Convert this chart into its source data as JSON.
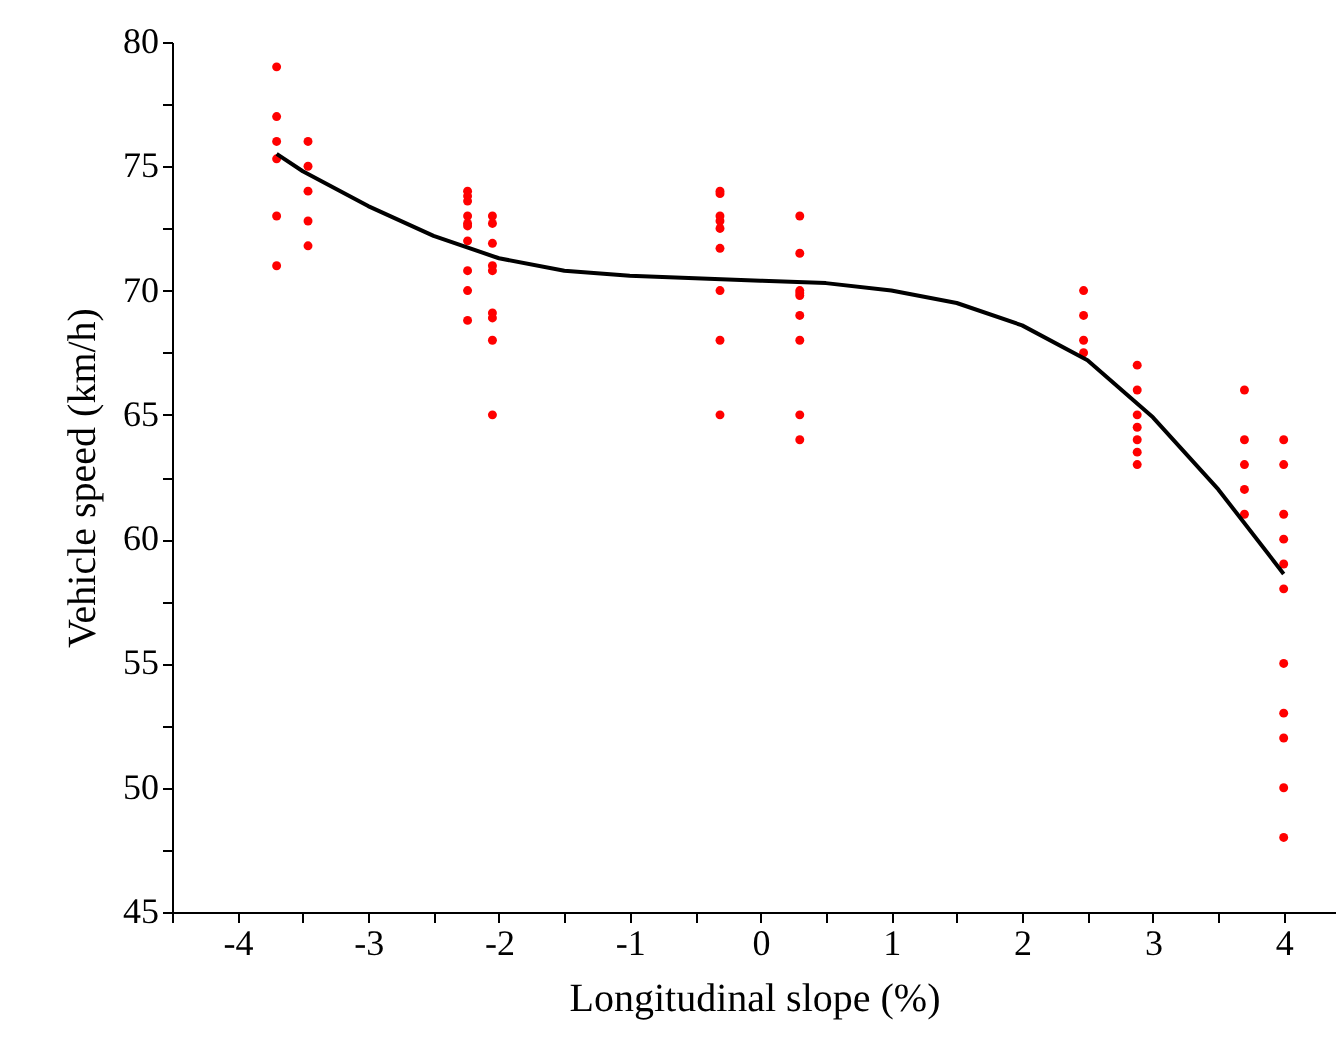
{
  "chart_data": {
    "type": "scatter",
    "xlabel": "Longitudinal slope  (%)",
    "ylabel": "Vehicle speed (km/h)",
    "xlim": [
      -4.5,
      4.4
    ],
    "ylim": [
      45,
      80
    ],
    "xticks": [
      {
        "value": -4.5,
        "label": null
      },
      -4,
      {
        "value": -3.5,
        "label": null
      },
      -3,
      {
        "value": -2.5,
        "label": null
      },
      -2,
      {
        "value": -1.5,
        "label": null
      },
      -1,
      {
        "value": -0.5,
        "label": null
      },
      0,
      {
        "value": 0.5,
        "label": null
      },
      1,
      {
        "value": 1.5,
        "label": null
      },
      2,
      {
        "value": 2.5,
        "label": null
      },
      3,
      {
        "value": 3.5,
        "label": null
      },
      4
    ],
    "yticks": [
      45,
      {
        "value": 47.5,
        "label": null
      },
      50,
      {
        "value": 52.5,
        "label": null
      },
      55,
      {
        "value": 57.5,
        "label": null
      },
      60,
      {
        "value": 62.5,
        "label": null
      },
      65,
      {
        "value": 67.5,
        "label": null
      },
      70,
      {
        "value": 72.5,
        "label": null
      },
      75,
      {
        "value": 77.5,
        "label": null
      },
      80
    ],
    "grid": false,
    "legend": false,
    "marker": "circle",
    "series": [
      {
        "type": "scatter",
        "color": "#ff0000",
        "x": [
          -3.7,
          -3.7,
          -3.7,
          -3.7,
          -3.7,
          -3.7,
          -3.46,
          -3.46,
          -3.46,
          -3.46,
          -3.46,
          -2.24,
          -2.24,
          -2.24,
          -2.24,
          -2.24,
          -2.24,
          -2.24,
          -2.24,
          -2.24,
          -2.24,
          -2.05,
          -2.05,
          -2.05,
          -2.05,
          -2.05,
          -2.05,
          -2.05,
          -2.05,
          -2.05,
          -0.31,
          -0.31,
          -0.31,
          -0.31,
          -0.31,
          -0.31,
          -0.31,
          -0.31,
          -0.31,
          0.3,
          0.3,
          0.3,
          0.3,
          0.3,
          0.3,
          0.3,
          0.3,
          0.3,
          2.47,
          2.47,
          2.47,
          2.47,
          2.88,
          2.88,
          2.88,
          2.88,
          2.88,
          2.88,
          2.88,
          3.7,
          3.7,
          3.7,
          3.7,
          3.7,
          4,
          4,
          4,
          4,
          4,
          4,
          4,
          4,
          4,
          4,
          4
        ],
        "values": [
          79,
          77,
          76,
          75.3,
          73,
          71,
          76,
          75,
          74,
          72.8,
          71.8,
          74,
          73.8,
          73.6,
          73,
          72.7,
          72.6,
          72,
          70.8,
          70,
          68.8,
          73,
          72.7,
          71.9,
          71,
          70.8,
          69.1,
          68.9,
          68,
          65,
          74,
          73.9,
          73,
          72.8,
          72.5,
          71.7,
          70,
          68,
          65,
          73,
          71.5,
          70,
          69.9,
          69.8,
          69,
          68,
          65,
          64,
          70,
          69,
          68,
          67.5,
          67,
          66,
          65,
          64.5,
          64,
          63.5,
          63,
          66,
          64,
          63,
          62,
          61,
          64,
          63,
          61,
          60,
          59,
          58,
          55,
          53,
          52,
          50,
          48
        ]
      },
      {
        "type": "line",
        "color": "#000000",
        "marker": "none",
        "line_style": "solid",
        "x": [
          -3.7,
          -3.5,
          -3,
          -2.5,
          -2,
          -1.5,
          -1,
          -0.5,
          0,
          0.5,
          1,
          1.5,
          2,
          2.5,
          3,
          3.5,
          4
        ],
        "values": [
          75.5,
          74.8,
          73.4,
          72.2,
          71.3,
          70.8,
          70.6,
          70.5,
          70.4,
          70.3,
          70,
          69.5,
          68.6,
          67.2,
          64.9,
          62,
          58.6
        ]
      }
    ]
  }
}
